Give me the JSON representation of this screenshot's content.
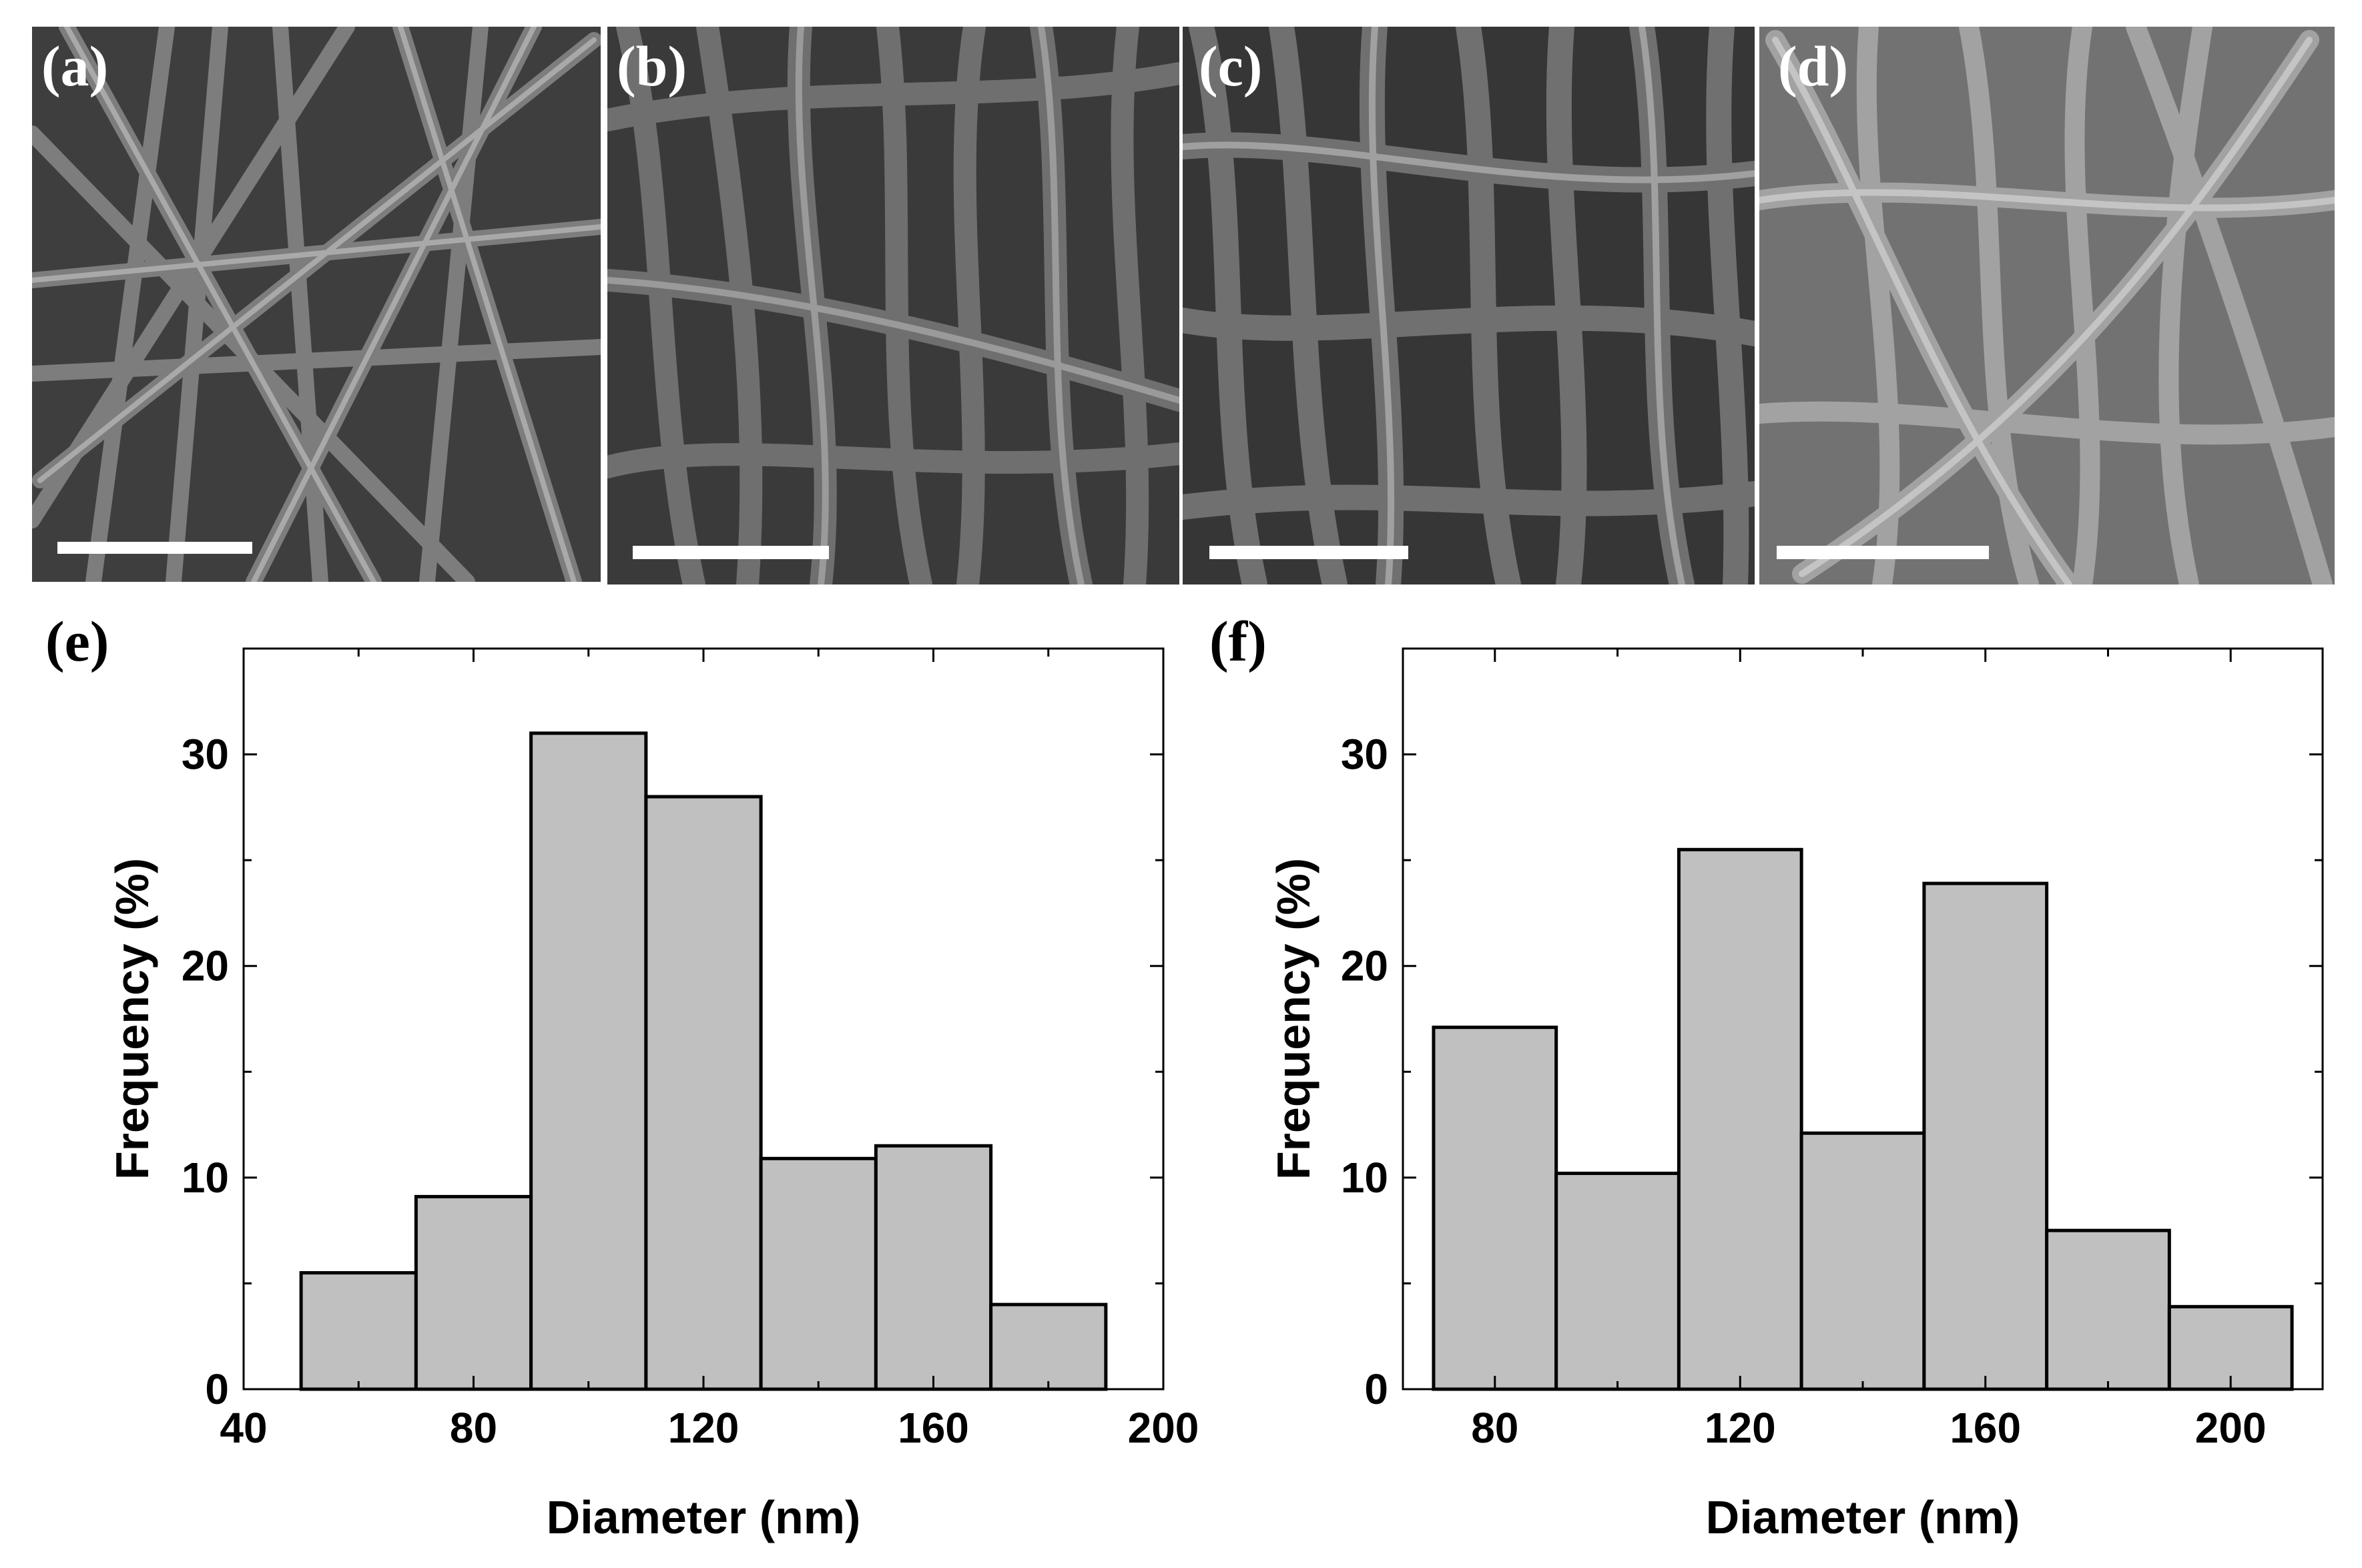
{
  "sem_panels": [
    {
      "label": "(a)"
    },
    {
      "label": "(b)"
    },
    {
      "label": "(c)"
    },
    {
      "label": "(d)"
    }
  ],
  "chart_data": [
    {
      "type": "bar",
      "panel_label": "(e)",
      "xlabel": "Diameter (nm)",
      "ylabel": "Frequency (%)",
      "xlim": [
        40,
        200
      ],
      "ylim": [
        0,
        35
      ],
      "xticks": [
        40,
        80,
        120,
        160,
        200
      ],
      "yticks": [
        0,
        10,
        20,
        30
      ],
      "bin_width": 20,
      "bin_centers": [
        60,
        80,
        100,
        120,
        140,
        160,
        180
      ],
      "values": [
        5.5,
        9.1,
        31.0,
        28.0,
        10.9,
        11.5,
        4.0
      ]
    },
    {
      "type": "bar",
      "panel_label": "(f)",
      "xlabel": "Diameter (nm)",
      "ylabel": "Frequency (%)",
      "xlim": [
        65,
        215
      ],
      "ylim": [
        0,
        35
      ],
      "xticks": [
        80,
        120,
        160,
        200
      ],
      "yticks": [
        0,
        10,
        20,
        30
      ],
      "bin_width": 20,
      "bin_centers": [
        80,
        100,
        120,
        140,
        160,
        180,
        200
      ],
      "values": [
        17.1,
        10.2,
        25.5,
        12.1,
        23.9,
        7.5,
        3.9
      ]
    }
  ]
}
